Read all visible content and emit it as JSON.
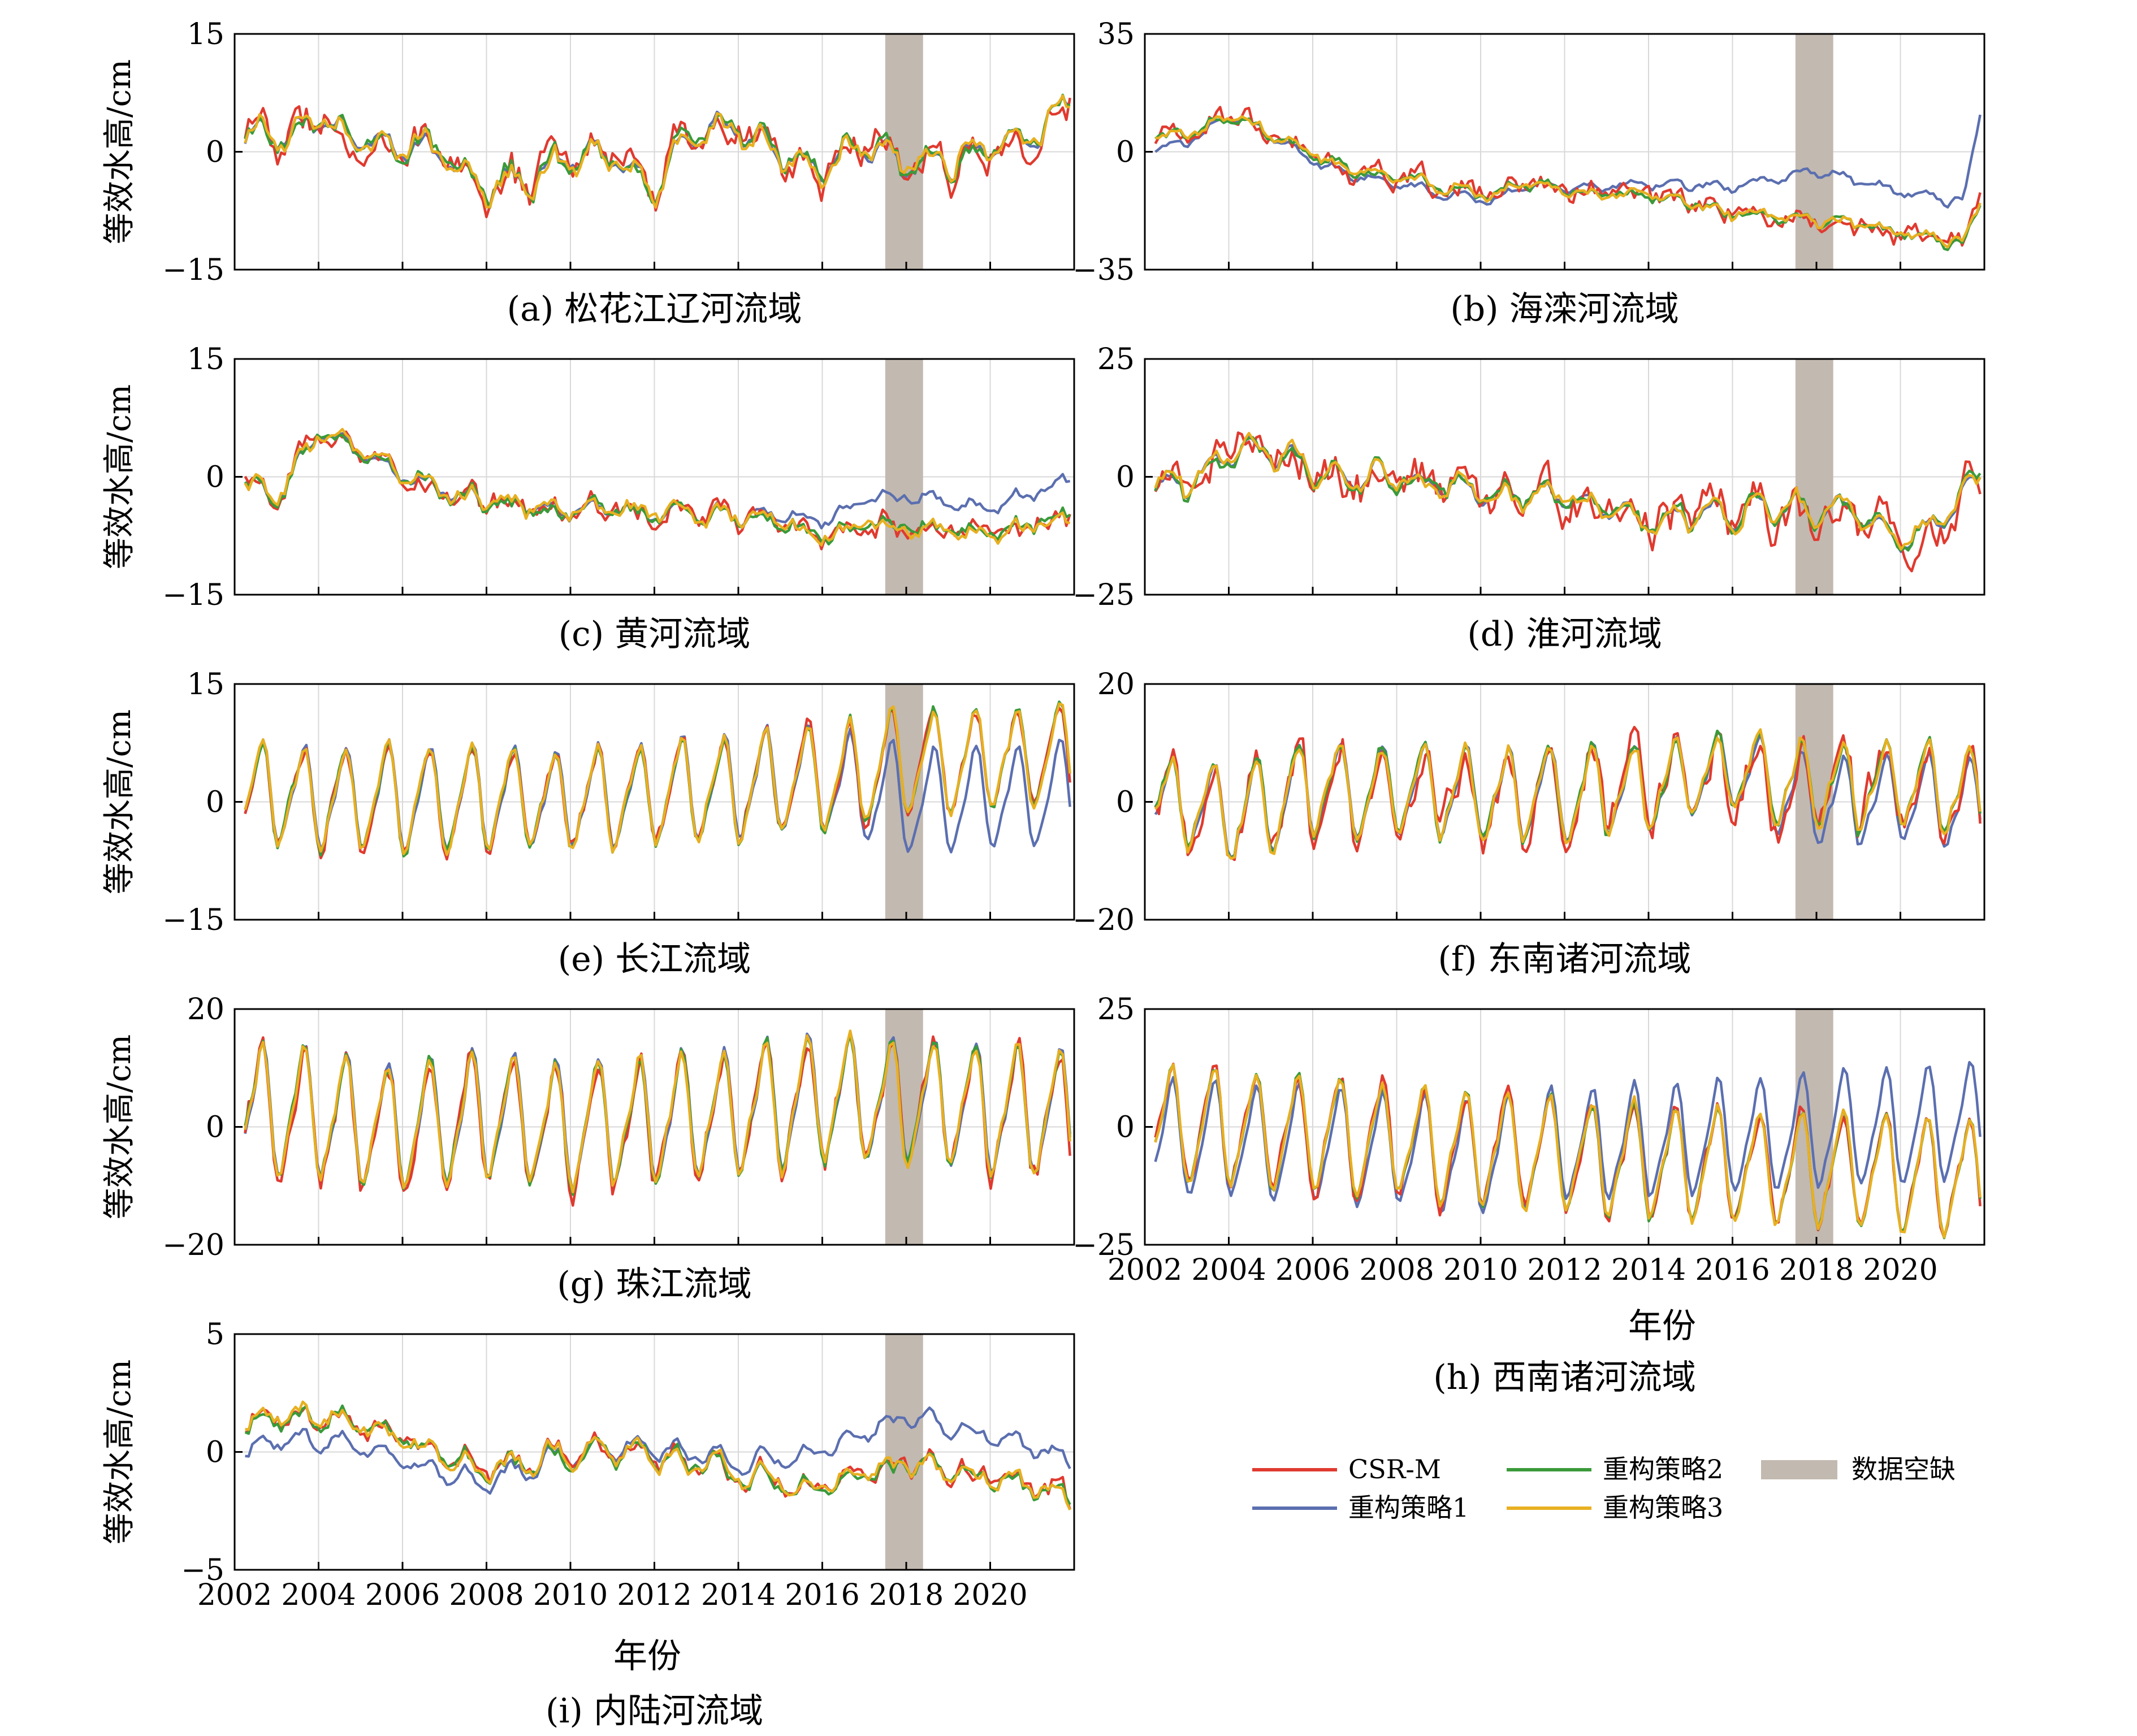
{
  "figure": {
    "ylabel": "等效水高/cm",
    "xlabel": "年份",
    "x_ticks": [
      "2002",
      "2004",
      "2006",
      "2008",
      "2010",
      "2012",
      "2014",
      "2016",
      "2018",
      "2020"
    ],
    "gap_label": "数据空缺",
    "gap_range": [
      2017.5,
      2018.4
    ],
    "legend": [
      "CSR-M",
      "重构策略1",
      "重构策略2",
      "重构策略3"
    ]
  },
  "series_colors": {
    "CSR-M": "#e03a2f",
    "重构策略1": "#5b6fb0",
    "重构策略2": "#3a9a3a",
    "重构策略3": "#e8b020",
    "gap": "#c2b9b0"
  },
  "chart_data": [
    {
      "id": "a",
      "type": "line",
      "caption": "(a) 松花江辽河流域",
      "xlim": [
        2002,
        2022
      ],
      "ylim": [
        -15,
        15
      ],
      "yticks": [
        "15",
        "0",
        "-15"
      ],
      "xlabel": "",
      "ylabel": "等效水高/cm",
      "pattern": {
        "kind": "irregular",
        "amp": 3,
        "noise": 2.2,
        "knots": [
          [
            2002,
            1
          ],
          [
            2004,
            4
          ],
          [
            2005,
            2
          ],
          [
            2006,
            1
          ],
          [
            2007,
            -1
          ],
          [
            2008,
            -5
          ],
          [
            2010,
            -1
          ],
          [
            2011,
            0
          ],
          [
            2012,
            -5
          ],
          [
            2013,
            3
          ],
          [
            2014,
            3
          ],
          [
            2015,
            -1
          ],
          [
            2017,
            0
          ],
          [
            2018,
            -2
          ],
          [
            2020,
            0
          ],
          [
            2021,
            1
          ],
          [
            2022,
            7
          ]
        ]
      },
      "strategy1_offset": [
        0,
        0
      ],
      "red_extra": 1.2
    },
    {
      "id": "b",
      "type": "line",
      "caption": "(b) 海滦河流域",
      "xlim": [
        2002,
        2022
      ],
      "ylim": [
        -35,
        35
      ],
      "yticks": [
        "35",
        "0",
        "-35"
      ],
      "xlabel": "",
      "ylabel": "",
      "pattern": {
        "kind": "trend",
        "amp": 2,
        "noise": 2.5,
        "knots": [
          [
            2002,
            3
          ],
          [
            2003,
            5
          ],
          [
            2004,
            10
          ],
          [
            2005,
            6
          ],
          [
            2006,
            -2
          ],
          [
            2008,
            -8
          ],
          [
            2010,
            -12
          ],
          [
            2012,
            -10
          ],
          [
            2014,
            -13
          ],
          [
            2016,
            -18
          ],
          [
            2018,
            -20
          ],
          [
            2020,
            -24
          ],
          [
            2021.5,
            -27
          ],
          [
            2022,
            -12
          ]
        ]
      },
      "strategy1_offset": [
        [
          2002,
          -4
        ],
        [
          2004,
          0
        ],
        [
          2007,
          -2
        ],
        [
          2010,
          -2
        ],
        [
          2014,
          3
        ],
        [
          2016,
          8
        ],
        [
          2018,
          14
        ],
        [
          2020,
          12
        ],
        [
          2021.5,
          12
        ],
        [
          2022,
          30
        ]
      ],
      "red_extra": 1.5
    },
    {
      "id": "c",
      "type": "line",
      "caption": "(c) 黄河流域",
      "xlim": [
        2002,
        2022
      ],
      "ylim": [
        -15,
        15
      ],
      "yticks": [
        "15",
        "0",
        "-15"
      ],
      "xlabel": "",
      "ylabel": "等效水高/cm",
      "pattern": {
        "kind": "trend",
        "amp": 1.5,
        "noise": 1.6,
        "knots": [
          [
            2002,
            0
          ],
          [
            2003,
            -3
          ],
          [
            2004,
            6
          ],
          [
            2005,
            3
          ],
          [
            2006,
            0
          ],
          [
            2008,
            -3
          ],
          [
            2010,
            -4
          ],
          [
            2012,
            -5
          ],
          [
            2014,
            -5
          ],
          [
            2016,
            -7
          ],
          [
            2018,
            -6
          ],
          [
            2020,
            -7
          ],
          [
            2022,
            -5
          ]
        ]
      },
      "strategy1_offset": [
        [
          2002,
          0
        ],
        [
          2014,
          0
        ],
        [
          2016,
          2
        ],
        [
          2018,
          4
        ],
        [
          2020,
          3
        ],
        [
          2022,
          5
        ]
      ],
      "red_extra": 1.0
    },
    {
      "id": "d",
      "type": "line",
      "caption": "(d) 淮河流域",
      "xlim": [
        2002,
        2022
      ],
      "ylim": [
        -25,
        25
      ],
      "yticks": [
        "25",
        "0",
        "-25"
      ],
      "xlabel": "",
      "ylabel": "",
      "pattern": {
        "kind": "irregular",
        "amp": 4,
        "noise": 3.0,
        "knots": [
          [
            2002,
            -3
          ],
          [
            2003,
            -2
          ],
          [
            2004,
            5
          ],
          [
            2005,
            5
          ],
          [
            2006,
            2
          ],
          [
            2008,
            0
          ],
          [
            2010,
            -3
          ],
          [
            2012,
            -4
          ],
          [
            2014,
            -10
          ],
          [
            2016,
            -7
          ],
          [
            2018,
            -7
          ],
          [
            2019,
            -8
          ],
          [
            2020,
            -15
          ],
          [
            2021.5,
            -5
          ],
          [
            2022,
            3
          ]
        ]
      },
      "strategy1_offset": [
        [
          2002,
          0
        ],
        [
          2022,
          0
        ]
      ],
      "red_extra": 2.0
    },
    {
      "id": "e",
      "type": "line",
      "caption": "(e) 长江流域",
      "xlim": [
        2002,
        2022
      ],
      "ylim": [
        -15,
        15
      ],
      "yticks": [
        "15",
        "0",
        "-15"
      ],
      "xlabel": "",
      "ylabel": "等效水高/cm",
      "pattern": {
        "kind": "seasonal",
        "amp": 6,
        "noise": 1.2,
        "knots": [
          [
            2002,
            1
          ],
          [
            2008,
            0
          ],
          [
            2012,
            1
          ],
          [
            2016,
            3
          ],
          [
            2018,
            5
          ],
          [
            2022,
            6
          ]
        ]
      },
      "strategy1_offset": [
        [
          2002,
          0
        ],
        [
          2016,
          0
        ],
        [
          2018,
          -5
        ],
        [
          2022,
          -5
        ]
      ],
      "red_extra": 1.0
    },
    {
      "id": "f",
      "type": "line",
      "caption": "(f) 东南诸河流域",
      "xlim": [
        2002,
        2022
      ],
      "ylim": [
        -20,
        20
      ],
      "yticks": [
        "20",
        "0",
        "-20"
      ],
      "xlabel": "",
      "ylabel": "",
      "pattern": {
        "kind": "seasonal",
        "amp": 7,
        "noise": 2.0,
        "knots": [
          [
            2002,
            1
          ],
          [
            2004,
            -3
          ],
          [
            2006,
            2
          ],
          [
            2010,
            1
          ],
          [
            2014,
            2
          ],
          [
            2016,
            6
          ],
          [
            2018,
            3
          ],
          [
            2020,
            3
          ],
          [
            2022,
            1
          ]
        ]
      },
      "strategy1_offset": [
        [
          2002,
          0
        ],
        [
          2016,
          0
        ],
        [
          2018,
          -3
        ],
        [
          2022,
          -2
        ]
      ],
      "red_extra": 2.0
    },
    {
      "id": "g",
      "type": "line",
      "caption": "(g) 珠江流域",
      "xlim": [
        2002,
        2022
      ],
      "ylim": [
        -20,
        20
      ],
      "yticks": [
        "20",
        "0",
        "-20"
      ],
      "xlabel": "",
      "ylabel": "等效水高/cm",
      "pattern": {
        "kind": "seasonal",
        "amp": 10,
        "noise": 1.8,
        "knots": [
          [
            2002,
            3
          ],
          [
            2006,
            0
          ],
          [
            2008,
            2
          ],
          [
            2010,
            0
          ],
          [
            2012,
            1
          ],
          [
            2014,
            3
          ],
          [
            2016,
            5
          ],
          [
            2018,
            4
          ],
          [
            2020,
            3
          ],
          [
            2022,
            2
          ]
        ]
      },
      "strategy1_offset": [
        [
          2002,
          0
        ],
        [
          2022,
          0
        ]
      ],
      "red_extra": 1.5
    },
    {
      "id": "h",
      "type": "line",
      "caption": "(h) 西南诸河流域",
      "xlim": [
        2002,
        2022
      ],
      "ylim": [
        -25,
        25
      ],
      "yticks": [
        "25",
        "0",
        "-25"
      ],
      "xlabel": "年份",
      "ylabel": "",
      "pattern": {
        "kind": "seasonal",
        "amp": 11,
        "noise": 1.6,
        "knots": [
          [
            2002,
            0
          ],
          [
            2004,
            0
          ],
          [
            2008,
            -3
          ],
          [
            2012,
            -6
          ],
          [
            2016,
            -8
          ],
          [
            2018,
            -9
          ],
          [
            2020,
            -10
          ],
          [
            2022,
            -10
          ]
        ]
      },
      "strategy1_offset": [
        [
          2002,
          -3
        ],
        [
          2010,
          -2
        ],
        [
          2012,
          2
        ],
        [
          2016,
          6
        ],
        [
          2018,
          8
        ],
        [
          2022,
          12
        ]
      ],
      "red_extra": 1.5
    },
    {
      "id": "i",
      "type": "line",
      "caption": "(i) 内陆河流域",
      "xlim": [
        2002,
        2022
      ],
      "ylim": [
        -5,
        5
      ],
      "yticks": [
        "5",
        "0",
        "-5"
      ],
      "xlabel": "年份",
      "ylabel": "等效水高/cm",
      "pattern": {
        "kind": "irregular",
        "amp": 0.6,
        "noise": 0.55,
        "knots": [
          [
            2002,
            0.5
          ],
          [
            2003,
            1.5
          ],
          [
            2005,
            1.5
          ],
          [
            2006,
            0.5
          ],
          [
            2008,
            -0.8
          ],
          [
            2010,
            0
          ],
          [
            2012,
            0
          ],
          [
            2014,
            -1
          ],
          [
            2016,
            -1.5
          ],
          [
            2018,
            -0.5
          ],
          [
            2020,
            -1
          ],
          [
            2022,
            -2
          ]
        ]
      },
      "strategy1_offset": [
        [
          2002,
          -1
        ],
        [
          2006,
          -1
        ],
        [
          2010,
          0
        ],
        [
          2014,
          0.5
        ],
        [
          2016,
          1.5
        ],
        [
          2018,
          2
        ],
        [
          2020,
          1.8
        ],
        [
          2022,
          1.5
        ]
      ],
      "red_extra": 0.6
    }
  ]
}
